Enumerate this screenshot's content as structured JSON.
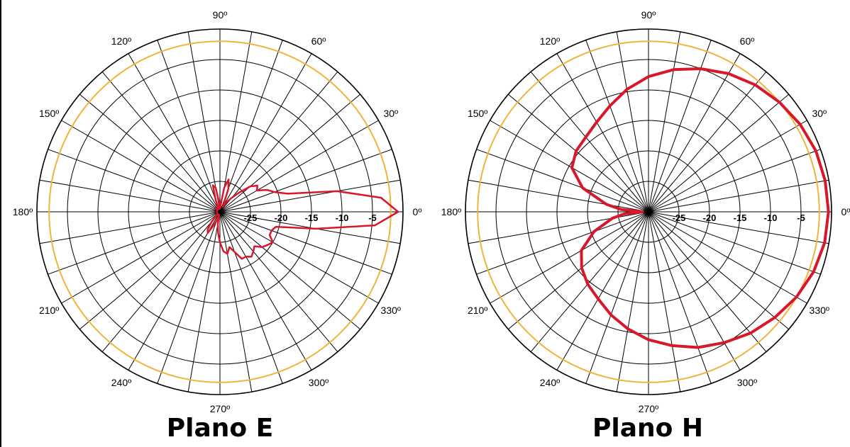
{
  "chart_data": [
    {
      "type": "polar",
      "title": "Plano E",
      "angular_labels": [
        "0º",
        "30º",
        "60º",
        "90º",
        "120º",
        "150º",
        "180º",
        "210º",
        "240º",
        "270º",
        "300º",
        "330º"
      ],
      "radial_labels": [
        "-25",
        "-20",
        "-15",
        "-10",
        "-5"
      ],
      "radial_range_db": [
        -30,
        0
      ],
      "reference_ring_db": -2,
      "grid": true,
      "series": [
        {
          "color": "#d8182a",
          "angles_deg": [
            0,
            5,
            10,
            15,
            20,
            25,
            30,
            35,
            40,
            45,
            50,
            55,
            60,
            65,
            70,
            75,
            80,
            85,
            90,
            95,
            100,
            105,
            110,
            115,
            120,
            125,
            130,
            135,
            140,
            145,
            150,
            155,
            160,
            165,
            170,
            175,
            180,
            185,
            190,
            195,
            200,
            205,
            210,
            215,
            220,
            225,
            230,
            235,
            240,
            245,
            250,
            255,
            260,
            265,
            270,
            275,
            280,
            285,
            290,
            295,
            300,
            305,
            310,
            315,
            320,
            325,
            330,
            335,
            340,
            345,
            350,
            355
          ],
          "gain_db": [
            -0.8,
            -3.5,
            -10.5,
            -18.5,
            -20.5,
            -21.5,
            -23,
            -22.5,
            -23.5,
            -25.5,
            -27,
            -28,
            -29,
            -28.5,
            -26,
            -24.5,
            -26,
            -29,
            -29.5,
            -28.5,
            -26,
            -25.5,
            -28,
            -29.5,
            -29.5,
            -29.5,
            -29.5,
            -29.5,
            -29,
            -29.5,
            -29.5,
            -29.5,
            -29.5,
            -29.5,
            -29.5,
            -29.5,
            -29.5,
            -29.5,
            -29.5,
            -29.5,
            -29.5,
            -29.5,
            -29.5,
            -29.5,
            -29.5,
            -29.5,
            -28,
            -26.5,
            -26,
            -27.5,
            -28.5,
            -29.5,
            -28,
            -26.5,
            -25,
            -23.5,
            -23,
            -24,
            -23,
            -21.5,
            -21.5,
            -21,
            -21.5,
            -22,
            -21,
            -20.5,
            -20,
            -21,
            -21,
            -20.5,
            -14,
            -4.5
          ]
        }
      ]
    },
    {
      "type": "polar",
      "title": "Plano H",
      "angular_labels": [
        "0º",
        "30º",
        "60º",
        "90º",
        "120º",
        "150º",
        "180º",
        "210º",
        "240º",
        "270º",
        "300º",
        "330º"
      ],
      "radial_labels": [
        "-25",
        "-20",
        "-15",
        "-10",
        "-5"
      ],
      "radial_range_db": [
        -30,
        0
      ],
      "reference_ring_db": -2,
      "grid": true,
      "series": [
        {
          "color": "#d8182a",
          "angles_deg": [
            0,
            10,
            20,
            30,
            40,
            50,
            60,
            70,
            80,
            90,
            100,
            110,
            120,
            130,
            140,
            150,
            160,
            170,
            175,
            180,
            185,
            190,
            200,
            210,
            220,
            230,
            240,
            250,
            260,
            270,
            280,
            290,
            300,
            310,
            320,
            330,
            340,
            350
          ],
          "gain_db": [
            -0.5,
            -0.6,
            -0.8,
            -1.3,
            -2,
            -2.8,
            -3.8,
            -5,
            -6.3,
            -7.8,
            -9.6,
            -11.5,
            -13,
            -14,
            -14.5,
            -15.5,
            -18.5,
            -23,
            -25.5,
            -29,
            -26,
            -24,
            -20.5,
            -17.3,
            -15.7,
            -14.5,
            -13.5,
            -12,
            -10.5,
            -9,
            -7.7,
            -6.3,
            -5.2,
            -4,
            -3,
            -2,
            -1.2,
            -0.7
          ]
        }
      ]
    }
  ]
}
